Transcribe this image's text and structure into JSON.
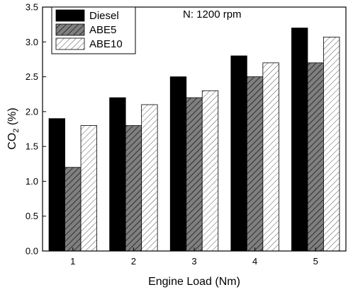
{
  "chart_data": {
    "type": "bar",
    "categories": [
      "1",
      "2",
      "3",
      "4",
      "5"
    ],
    "series": [
      {
        "name": "Diesel",
        "values": [
          1.9,
          2.2,
          2.5,
          2.8,
          3.2
        ],
        "fill": "#000000",
        "pattern": "solid"
      },
      {
        "name": "ABE5",
        "values": [
          1.2,
          1.8,
          2.2,
          2.5,
          2.7
        ],
        "fill": "#7f7f7f",
        "pattern": "hatch-dark"
      },
      {
        "name": "ABE10",
        "values": [
          1.8,
          2.1,
          2.3,
          2.7,
          3.07
        ],
        "fill": "#ffffff",
        "pattern": "hatch-light"
      }
    ],
    "xlabel": "Engine Load (Nm)",
    "ylabel_main": "CO",
    "ylabel_sub": "2",
    "ylabel_tail": " (%)",
    "ylim": [
      0,
      3.5
    ],
    "yticks": [
      "0.0",
      "0.5",
      "1.0",
      "1.5",
      "2.0",
      "2.5",
      "3.0",
      "3.5"
    ],
    "annotation": "N: 1200 rpm",
    "legend_position": "top-left",
    "grid": false
  }
}
